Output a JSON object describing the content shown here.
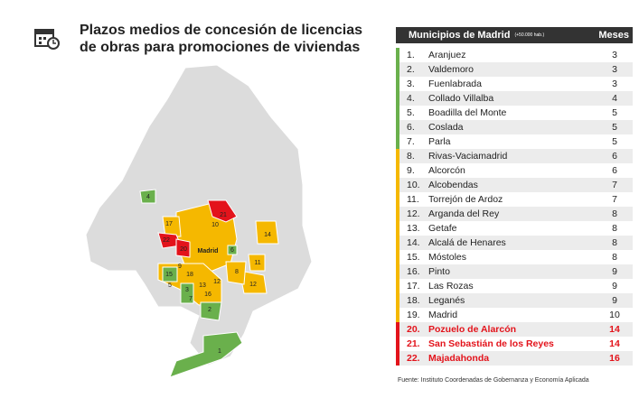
{
  "title": "Plazos medios de concesión de licencias de obras para promociones de viviendas",
  "table": {
    "header_municipio": "Municipios de Madrid",
    "header_sub": "(+50.000 hab.)",
    "header_meses": "Meses",
    "rows": [
      {
        "n": "1.",
        "name": "Aranjuez",
        "v": "3",
        "c": "g"
      },
      {
        "n": "2.",
        "name": "Valdemoro",
        "v": "3",
        "c": "g"
      },
      {
        "n": "3.",
        "name": "Fuenlabrada",
        "v": "3",
        "c": "g"
      },
      {
        "n": "4.",
        "name": "Collado Villalba",
        "v": "4",
        "c": "g"
      },
      {
        "n": "5.",
        "name": "Boadilla del Monte",
        "v": "5",
        "c": "g"
      },
      {
        "n": "6.",
        "name": "Coslada",
        "v": "5",
        "c": "g"
      },
      {
        "n": "7.",
        "name": "Parla",
        "v": "5",
        "c": "g"
      },
      {
        "n": "8.",
        "name": "Rivas-Vaciamadrid",
        "v": "6",
        "c": "y"
      },
      {
        "n": "9.",
        "name": "Alcorcón",
        "v": "6",
        "c": "y"
      },
      {
        "n": "10.",
        "name": "Alcobendas",
        "v": "7",
        "c": "y"
      },
      {
        "n": "11.",
        "name": "Torrejón de Ardoz",
        "v": "7",
        "c": "y"
      },
      {
        "n": "12.",
        "name": "Arganda del Rey",
        "v": "8",
        "c": "y"
      },
      {
        "n": "13.",
        "name": "Getafe",
        "v": "8",
        "c": "y"
      },
      {
        "n": "14.",
        "name": "Alcalá de Henares",
        "v": "8",
        "c": "y"
      },
      {
        "n": "15.",
        "name": "Móstoles",
        "v": "8",
        "c": "y"
      },
      {
        "n": "16.",
        "name": "Pinto",
        "v": "9",
        "c": "y"
      },
      {
        "n": "17.",
        "name": "Las Rozas",
        "v": "9",
        "c": "y"
      },
      {
        "n": "18.",
        "name": "Leganés",
        "v": "9",
        "c": "y"
      },
      {
        "n": "19.",
        "name": "Madrid",
        "v": "10",
        "c": "y"
      },
      {
        "n": "20.",
        "name": "Pozuelo de Alarcón",
        "v": "14",
        "c": "r"
      },
      {
        "n": "21.",
        "name": "San Sebastián de los Reyes",
        "v": "14",
        "c": "r"
      },
      {
        "n": "22.",
        "name": "Majadahonda",
        "v": "16",
        "c": "r"
      }
    ]
  },
  "map_labels": {
    "madrid": "Madrid",
    "l4": "4",
    "l10": "10",
    "l21": "21",
    "l17": "17",
    "l22": "22",
    "l20": "20",
    "l6": "6",
    "l14": "14",
    "l11": "11",
    "l9": "9",
    "l15": "15",
    "l5": "5",
    "l18": "18",
    "l13": "13",
    "l12a": "12",
    "l8": "8",
    "l12b": "12",
    "l3": "3",
    "l7": "7",
    "l16": "16",
    "l2": "2",
    "l1": "1"
  },
  "colors": {
    "green": "#6ab04c",
    "yellow": "#f5b800",
    "red": "#e3131b",
    "region": "#dcdcdc"
  },
  "icon": "calendar-clock-icon",
  "source": "Fuente: Instituto Coordenadas de Gobernanza y Economía Aplicada"
}
